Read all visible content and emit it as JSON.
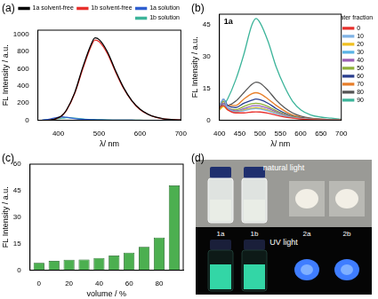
{
  "chart_data": [
    {
      "title": "(a)",
      "type": "line",
      "x_label": "λ/ nm",
      "y_label": "FL Intensity / a.u.",
      "x": [
        360,
        380,
        400,
        410,
        420,
        440,
        460,
        480,
        490,
        500,
        520,
        540,
        560,
        580,
        600,
        620,
        640,
        660,
        680,
        700
      ],
      "xlim": [
        350,
        700
      ],
      "xticks": [
        400,
        500,
        600,
        700
      ],
      "ylim": [
        0,
        1050
      ],
      "yticks": [
        0,
        200,
        400,
        600,
        800,
        1000
      ],
      "grid": false,
      "legend": "top right",
      "series": [
        {
          "name": "1a solvent-free",
          "color": "#000000",
          "values": [
            0,
            3,
            30,
            60,
            120,
            320,
            620,
            880,
            960,
            940,
            800,
            580,
            380,
            230,
            130,
            70,
            35,
            15,
            8,
            5
          ]
        },
        {
          "name": "1b solvent-free",
          "color": "#e8302c",
          "values": [
            0,
            3,
            28,
            58,
            115,
            310,
            600,
            860,
            935,
            915,
            780,
            565,
            370,
            225,
            125,
            68,
            34,
            15,
            8,
            5
          ]
        },
        {
          "name": "1a solution",
          "color": "#2f5fd0",
          "values": [
            2,
            15,
            35,
            40,
            35,
            20,
            12,
            8,
            6,
            5,
            3,
            2,
            1,
            1,
            0,
            0,
            0,
            0,
            0,
            0
          ]
        },
        {
          "name": "1b solution",
          "color": "#3cb49a",
          "values": [
            0,
            5,
            20,
            25,
            30,
            25,
            15,
            10,
            8,
            6,
            4,
            3,
            2,
            1,
            1,
            0,
            0,
            0,
            0,
            0
          ]
        }
      ]
    },
    {
      "title": "(b)",
      "type": "line",
      "annotation": "1a",
      "legend_title": "water fraction%",
      "x_label": "λ/ nm",
      "y_label": "FL Intensity / a.u.",
      "x": [
        400,
        410,
        420,
        440,
        460,
        480,
        490,
        500,
        520,
        540,
        560,
        580,
        600,
        625,
        650,
        675,
        700
      ],
      "xlim": [
        400,
        700
      ],
      "xticks": [
        400,
        450,
        500,
        550,
        600,
        650,
        700
      ],
      "ylim": [
        0,
        50
      ],
      "yticks": [
        0,
        15,
        30,
        45
      ],
      "grid": false,
      "legend": "right",
      "series": [
        {
          "name": "0",
          "color": "#e8302c",
          "values": [
            6,
            7,
            5,
            3.5,
            3.5,
            3.9,
            4,
            3.9,
            3.3,
            2.4,
            1.6,
            1,
            0.6,
            0.3,
            0.2,
            0.1,
            0.1
          ]
        },
        {
          "name": "10",
          "color": "#7fb2e5",
          "values": [
            7,
            10,
            6,
            4,
            4.5,
            5.3,
            5.5,
            5.3,
            4.4,
            3.1,
            2,
            1.2,
            0.7,
            0.3,
            0.2,
            0.1,
            0.1
          ]
        },
        {
          "name": "20",
          "color": "#f0c020",
          "values": [
            5,
            6.5,
            5,
            4,
            4.8,
            5.7,
            5.9,
            5.7,
            4.7,
            3.3,
            2.1,
            1.2,
            0.7,
            0.4,
            0.2,
            0.1,
            0.1
          ]
        },
        {
          "name": "30",
          "color": "#5ab4e6",
          "values": [
            6,
            7,
            5.5,
            4,
            5,
            5.8,
            6,
            5.8,
            4.8,
            3.4,
            2.2,
            1.3,
            0.8,
            0.4,
            0.2,
            0.1,
            0.1
          ]
        },
        {
          "name": "40",
          "color": "#9a5fb4",
          "values": [
            7,
            8,
            6,
            4.5,
            5.5,
            6.8,
            7,
            6.8,
            5.6,
            4,
            2.6,
            1.5,
            0.9,
            0.5,
            0.3,
            0.2,
            0.1
          ]
        },
        {
          "name": "50",
          "color": "#8fb03a",
          "values": [
            6,
            9,
            6,
            5,
            6.5,
            7.8,
            8,
            7.8,
            6.5,
            4.5,
            3,
            1.8,
            1,
            0.5,
            0.3,
            0.2,
            0.1
          ]
        },
        {
          "name": "60",
          "color": "#2a3f8f",
          "values": [
            6,
            10,
            7,
            6,
            8,
            9.5,
            10,
            9.7,
            8,
            5.5,
            3.5,
            2,
            1.2,
            0.6,
            0.4,
            0.2,
            0.1
          ]
        },
        {
          "name": "70",
          "color": "#e87f2a",
          "values": [
            6,
            9,
            7,
            7,
            10,
            12.5,
            13,
            12.5,
            10,
            7,
            4.5,
            2.5,
            1.5,
            0.8,
            0.5,
            0.3,
            0.2
          ]
        },
        {
          "name": "80",
          "color": "#555555",
          "values": [
            5,
            8,
            7,
            9,
            13,
            17,
            18,
            17.5,
            14,
            9.5,
            6,
            3.5,
            2,
            1,
            0.6,
            0.3,
            0.2
          ]
        },
        {
          "name": "90",
          "color": "#3cb49a",
          "values": [
            5,
            7,
            10,
            19,
            31,
            45,
            48,
            46,
            37,
            25,
            16,
            9,
            5,
            2.5,
            1.5,
            1,
            0.5
          ]
        }
      ]
    },
    {
      "title": "(c)",
      "type": "bar",
      "x_label": "volume / %",
      "y_label": "FL Intensity / a.u.",
      "x": [
        0,
        10,
        20,
        30,
        40,
        50,
        60,
        70,
        80,
        90
      ],
      "values": [
        4.2,
        5.3,
        6,
        6.1,
        7,
        8.3,
        10,
        13.2,
        18.5,
        48
      ],
      "color": "#4caf50",
      "xlim": [
        -6,
        96
      ],
      "xticks": [
        0,
        20,
        40,
        60,
        80
      ],
      "ylim": [
        0,
        60
      ],
      "yticks": [
        0,
        15,
        30,
        45,
        60
      ],
      "grid": false
    }
  ],
  "photo": {
    "title": "(d)",
    "top_label": "natural light",
    "bottom_label": "UV light",
    "labels": [
      "1a",
      "1b",
      "2a",
      "2b"
    ]
  }
}
